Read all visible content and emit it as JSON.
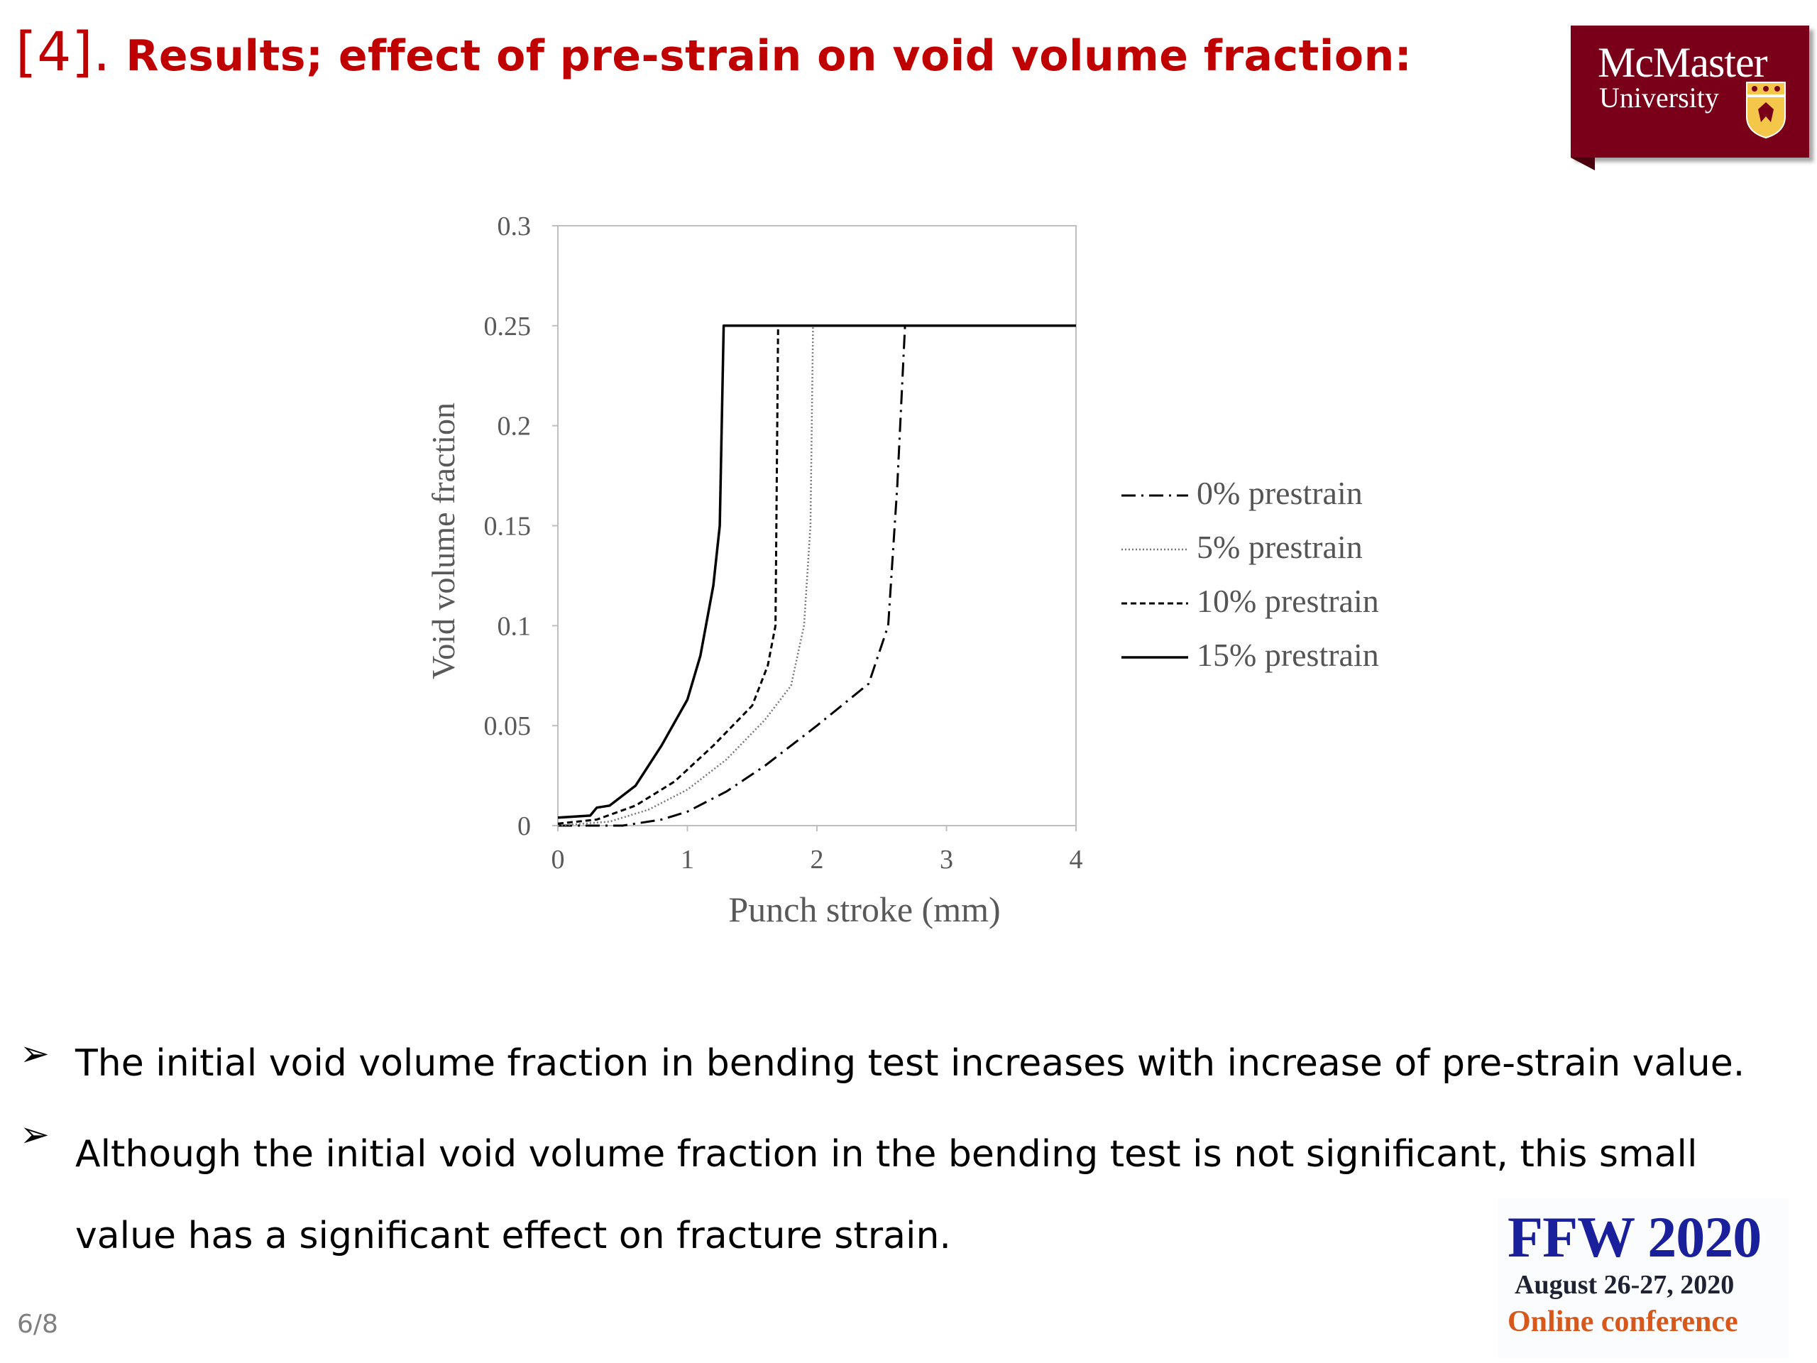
{
  "slide": {
    "title_num": "[4].",
    "title_text": " Results; effect of pre-strain on void volume fraction:",
    "page_number": "6/8"
  },
  "logo": {
    "line1": "McMaster",
    "line2": "University"
  },
  "chart_data": {
    "type": "line",
    "xlabel": "Punch stroke (mm)",
    "ylabel": "Void volume fraction",
    "xlim": [
      0,
      4
    ],
    "ylim": [
      0,
      0.3
    ],
    "x_ticks": [
      "0",
      "1",
      "2",
      "3",
      "4"
    ],
    "y_ticks": [
      "0",
      "0.05",
      "0.1",
      "0.15",
      "0.2",
      "0.25",
      "0.3"
    ],
    "grid": false,
    "legend_position": "right",
    "series": [
      {
        "name": "0% prestrain",
        "style": "dashdot",
        "x": [
          0,
          0.5,
          0.8,
          1.0,
          1.3,
          1.6,
          2.0,
          2.4,
          2.55,
          2.62,
          2.68,
          4.0
        ],
        "y": [
          0,
          0,
          0.003,
          0.007,
          0.017,
          0.03,
          0.05,
          0.071,
          0.1,
          0.17,
          0.25,
          0.25
        ]
      },
      {
        "name": "5% prestrain",
        "style": "dotted",
        "x": [
          0,
          0.4,
          0.7,
          1.0,
          1.3,
          1.6,
          1.8,
          1.9,
          1.95,
          1.97,
          4.0
        ],
        "y": [
          0,
          0.002,
          0.008,
          0.018,
          0.033,
          0.053,
          0.07,
          0.1,
          0.15,
          0.25,
          0.25
        ]
      },
      {
        "name": "10% prestrain",
        "style": "dashed",
        "x": [
          0,
          0.3,
          0.6,
          0.9,
          1.2,
          1.5,
          1.62,
          1.68,
          1.7,
          4.0
        ],
        "y": [
          0.001,
          0.003,
          0.01,
          0.022,
          0.04,
          0.06,
          0.08,
          0.1,
          0.25,
          0.25
        ]
      },
      {
        "name": "15% prestrain",
        "style": "solid",
        "x": [
          0,
          0.25,
          0.3,
          0.4,
          0.6,
          0.8,
          1.0,
          1.1,
          1.2,
          1.25,
          1.28,
          1.3,
          4.0
        ],
        "y": [
          0.004,
          0.005,
          0.009,
          0.01,
          0.02,
          0.04,
          0.063,
          0.085,
          0.12,
          0.15,
          0.25,
          0.25,
          0.25
        ]
      }
    ]
  },
  "bullets": [
    {
      "text": "The initial void volume fraction in bending test increases with increase of pre-strain value."
    },
    {
      "text": "Although the initial void volume fraction in the bending test is not significant, this small value has a significant effect on fracture strain."
    }
  ],
  "bullet_symbol": "➢",
  "conference": {
    "name": "FFW 2020",
    "dates": "August 26-27, 2020",
    "format": "Online conference"
  },
  "colors": {
    "title": "#c00000",
    "logo_bg": "#7a0019",
    "conf_blue": "#1a1f9c",
    "conf_orange": "#d8571a"
  }
}
